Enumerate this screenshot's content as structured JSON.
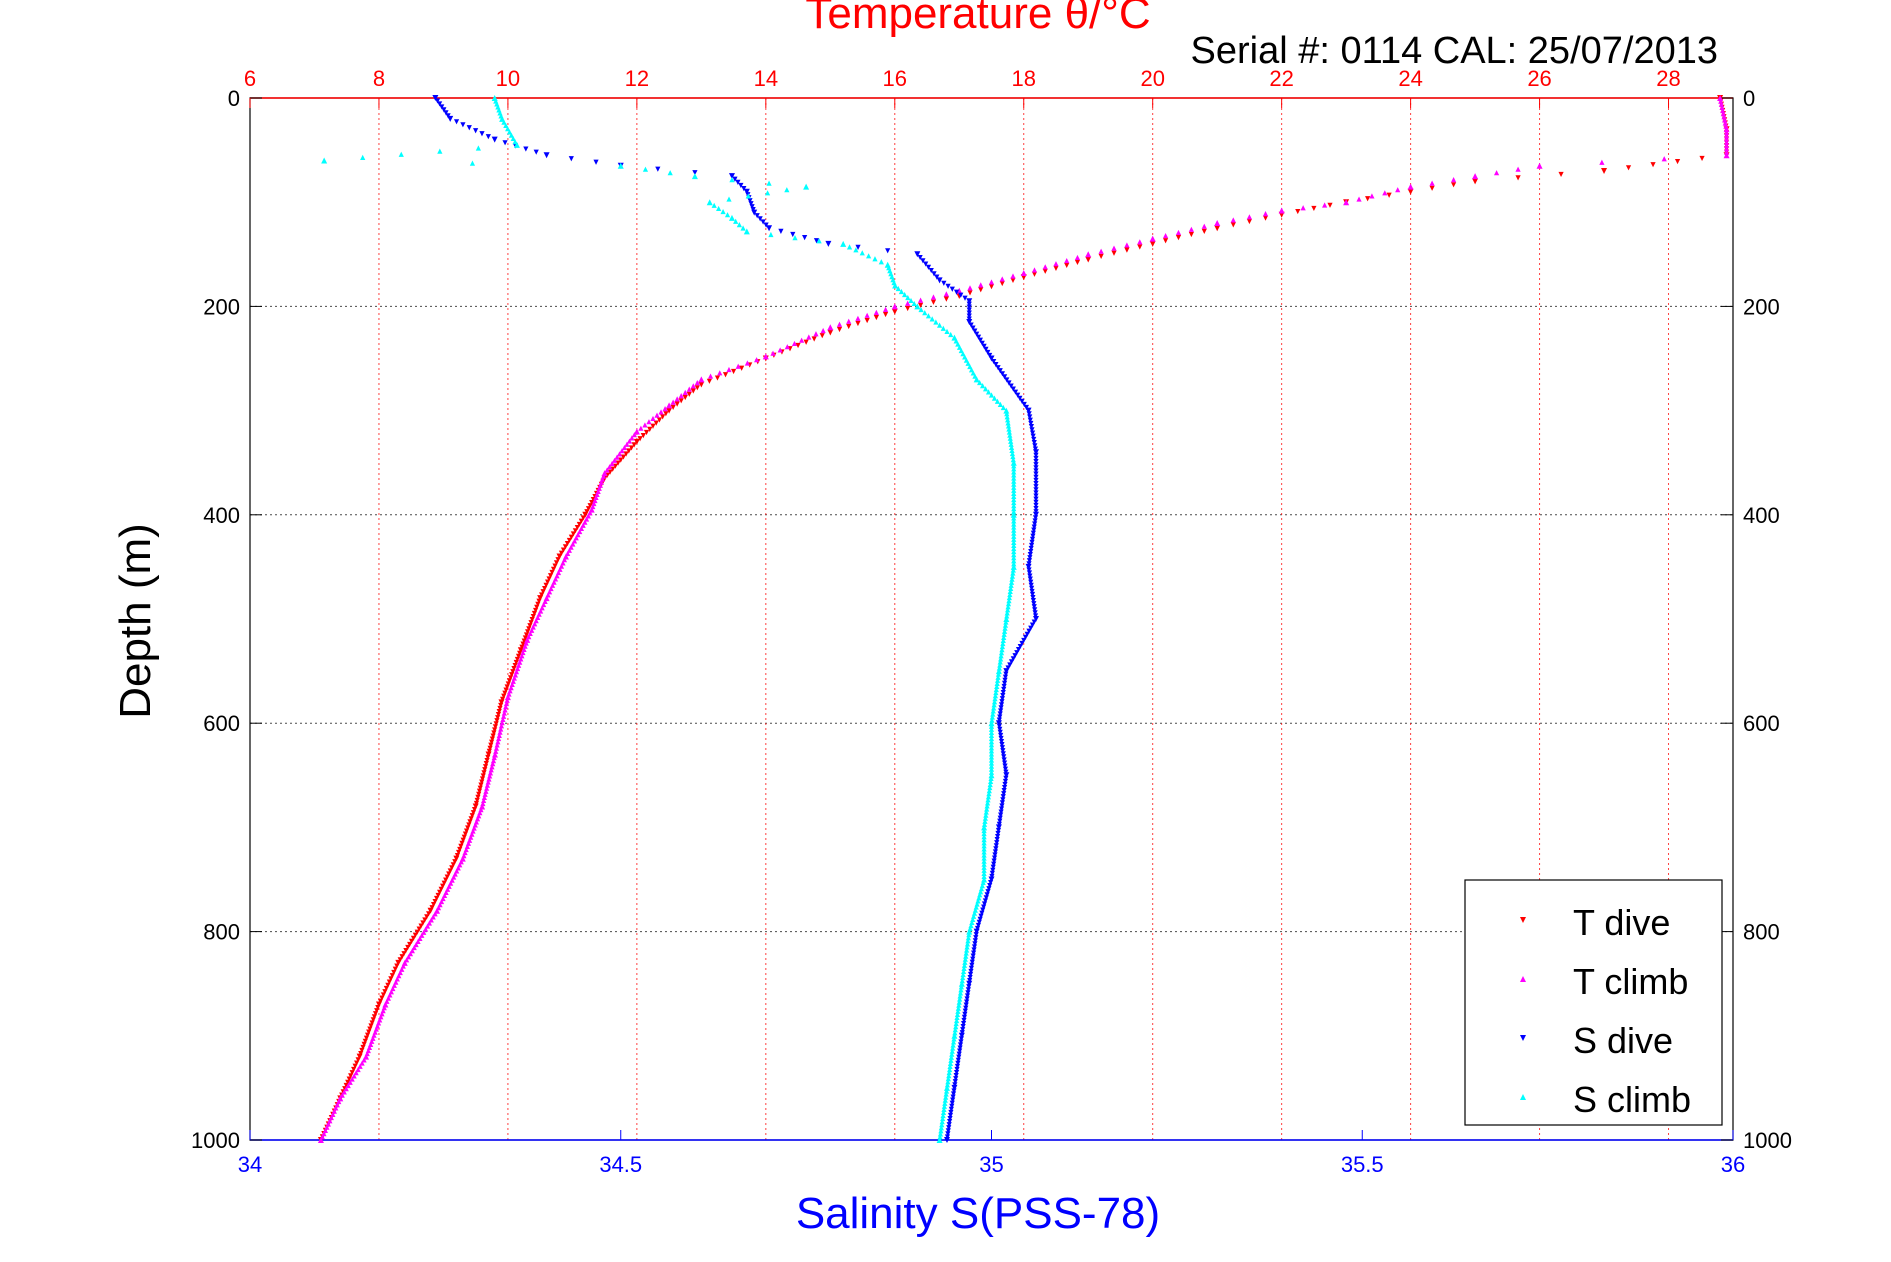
{
  "chart_data": {
    "type": "scatter",
    "title_top": "Temperature θ/°C",
    "subtitle": "Serial #: 0114  CAL: 25/07/2013",
    "ylabel": "Depth (m)",
    "xlabel_bottom": "Salinity S(PSS-78)",
    "y_axis": {
      "range": [
        0,
        1000
      ],
      "reversed": true,
      "ticks": [
        "0",
        "200",
        "400",
        "600",
        "800",
        "1000"
      ]
    },
    "x_axis_bottom": {
      "range": [
        34,
        36
      ],
      "ticks": [
        "34",
        "34.5",
        "35",
        "35.5",
        "36"
      ]
    },
    "x_axis_top": {
      "range": [
        6,
        29
      ],
      "ticks": [
        "6",
        "8",
        "10",
        "12",
        "14",
        "16",
        "18",
        "20",
        "22",
        "24",
        "26",
        "28"
      ]
    },
    "grid": true,
    "legend_position": "bottom-right",
    "colors": {
      "temperature_axis": "#ff0000",
      "salinity_axis": "#0000ff",
      "t_dive": "#ff0000",
      "t_climb": "#ff00ff",
      "s_dive": "#0000ff",
      "s_climb": "#00ffff"
    },
    "series": [
      {
        "name": "T dive",
        "axis": "top",
        "marker": "triangle-down",
        "points": [
          [
            28.8,
            0
          ],
          [
            28.9,
            30
          ],
          [
            28.9,
            55
          ],
          [
            27.0,
            70
          ],
          [
            25.0,
            80
          ],
          [
            24.0,
            90
          ],
          [
            23.0,
            100
          ],
          [
            22.0,
            112
          ],
          [
            21.0,
            125
          ],
          [
            20.0,
            140
          ],
          [
            19.0,
            155
          ],
          [
            18.0,
            172
          ],
          [
            17.0,
            190
          ],
          [
            16.0,
            205
          ],
          [
            15.0,
            225
          ],
          [
            14.0,
            250
          ],
          [
            13.0,
            275
          ],
          [
            12.5,
            300
          ],
          [
            12.0,
            330
          ],
          [
            11.5,
            365
          ],
          [
            11.2,
            400
          ],
          [
            10.8,
            440
          ],
          [
            10.5,
            480
          ],
          [
            10.2,
            530
          ],
          [
            9.9,
            580
          ],
          [
            9.7,
            630
          ],
          [
            9.5,
            680
          ],
          [
            9.2,
            730
          ],
          [
            8.8,
            780
          ],
          [
            8.3,
            830
          ],
          [
            8.0,
            870
          ],
          [
            7.7,
            920
          ],
          [
            7.4,
            960
          ],
          [
            7.1,
            1000
          ]
        ]
      },
      {
        "name": "T climb",
        "axis": "top",
        "marker": "triangle-up",
        "points": [
          [
            28.8,
            0
          ],
          [
            28.9,
            30
          ],
          [
            28.9,
            55
          ],
          [
            26.0,
            65
          ],
          [
            25.0,
            75
          ],
          [
            24.0,
            85
          ],
          [
            23.0,
            100
          ],
          [
            22.0,
            108
          ],
          [
            21.0,
            120
          ],
          [
            20.0,
            135
          ],
          [
            19.0,
            150
          ],
          [
            18.0,
            168
          ],
          [
            17.0,
            185
          ],
          [
            16.0,
            200
          ],
          [
            15.0,
            220
          ],
          [
            14.0,
            248
          ],
          [
            13.0,
            270
          ],
          [
            12.5,
            295
          ],
          [
            12.0,
            320
          ],
          [
            11.5,
            360
          ],
          [
            11.3,
            395
          ],
          [
            10.9,
            440
          ],
          [
            10.6,
            480
          ],
          [
            10.3,
            520
          ],
          [
            10.0,
            575
          ],
          [
            9.8,
            630
          ],
          [
            9.6,
            680
          ],
          [
            9.3,
            730
          ],
          [
            8.9,
            780
          ],
          [
            8.4,
            830
          ],
          [
            8.1,
            870
          ],
          [
            7.8,
            920
          ],
          [
            7.4,
            960
          ],
          [
            7.1,
            1000
          ]
        ]
      },
      {
        "name": "S dive",
        "axis": "bottom",
        "marker": "triangle-down",
        "points": [
          [
            34.25,
            0
          ],
          [
            34.27,
            20
          ],
          [
            34.33,
            40
          ],
          [
            34.4,
            55
          ],
          [
            34.5,
            65
          ],
          [
            34.65,
            75
          ],
          [
            34.67,
            90
          ],
          [
            34.68,
            110
          ],
          [
            34.7,
            125
          ],
          [
            34.78,
            140
          ],
          [
            34.9,
            150
          ],
          [
            34.93,
            175
          ],
          [
            34.97,
            195
          ],
          [
            34.97,
            215
          ],
          [
            35.0,
            250
          ],
          [
            35.05,
            300
          ],
          [
            35.06,
            340
          ],
          [
            35.06,
            400
          ],
          [
            35.05,
            450
          ],
          [
            35.06,
            500
          ],
          [
            35.02,
            550
          ],
          [
            35.01,
            600
          ],
          [
            35.02,
            650
          ],
          [
            35.01,
            700
          ],
          [
            35.0,
            750
          ],
          [
            34.98,
            800
          ],
          [
            34.97,
            850
          ],
          [
            34.96,
            900
          ],
          [
            34.95,
            950
          ],
          [
            34.94,
            1000
          ]
        ]
      },
      {
        "name": "S climb",
        "axis": "bottom",
        "marker": "triangle-up",
        "points": [
          [
            34.33,
            0
          ],
          [
            34.34,
            20
          ],
          [
            34.36,
            45
          ],
          [
            34.1,
            60
          ],
          [
            34.5,
            65
          ],
          [
            34.6,
            75
          ],
          [
            34.75,
            85
          ],
          [
            34.62,
            100
          ],
          [
            34.65,
            115
          ],
          [
            34.67,
            128
          ],
          [
            34.8,
            140
          ],
          [
            34.86,
            160
          ],
          [
            34.87,
            180
          ],
          [
            34.9,
            200
          ],
          [
            34.95,
            230
          ],
          [
            34.98,
            270
          ],
          [
            35.02,
            300
          ],
          [
            35.03,
            350
          ],
          [
            35.03,
            400
          ],
          [
            35.03,
            450
          ],
          [
            35.02,
            500
          ],
          [
            35.01,
            550
          ],
          [
            35.0,
            600
          ],
          [
            35.0,
            650
          ],
          [
            34.99,
            700
          ],
          [
            34.99,
            750
          ],
          [
            34.97,
            800
          ],
          [
            34.96,
            850
          ],
          [
            34.95,
            900
          ],
          [
            34.94,
            950
          ],
          [
            34.93,
            1000
          ]
        ]
      }
    ]
  }
}
